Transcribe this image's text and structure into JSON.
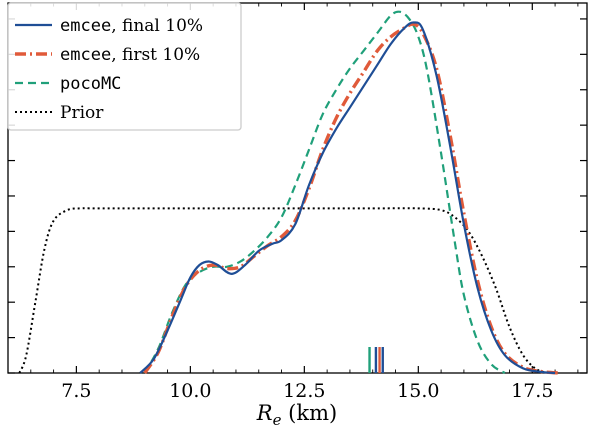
{
  "chart_data": {
    "type": "line",
    "xlabel_symbol": "R",
    "xlabel_subscript": "e",
    "xlabel_unit": " (km)",
    "ylabel": "",
    "xlim": [
      6.0,
      18.7
    ],
    "ylim": [
      0.0,
      1.045
    ],
    "xticks": [
      7.5,
      10.0,
      12.5,
      15.0,
      17.5
    ],
    "xtick_labels": [
      "7.5",
      "10.0",
      "12.5",
      "15.0",
      "17.5"
    ],
    "yticks": [
      0.0,
      0.1,
      0.2,
      0.3,
      0.4,
      0.5,
      0.6,
      0.7,
      0.8,
      0.9,
      1.0
    ],
    "legend_location": "upper-left",
    "series": [
      {
        "id": "final",
        "name_mono": "emcee",
        "name_rest": ", final 10%",
        "color": "#1f4e96",
        "dash": "solid",
        "x": [
          8.9,
          9.2,
          9.5,
          9.8,
          10.0,
          10.2,
          10.4,
          10.6,
          10.9,
          11.2,
          11.5,
          11.8,
          12.0,
          12.3,
          12.6,
          12.9,
          13.2,
          13.5,
          13.8,
          14.1,
          14.4,
          14.7,
          14.9,
          15.1,
          15.4,
          15.7,
          16.0,
          16.3,
          16.6,
          16.9,
          17.3,
          17.7,
          18.0
        ],
        "y": [
          0.0,
          0.04,
          0.12,
          0.21,
          0.27,
          0.305,
          0.315,
          0.305,
          0.28,
          0.305,
          0.345,
          0.365,
          0.375,
          0.42,
          0.53,
          0.62,
          0.69,
          0.75,
          0.81,
          0.87,
          0.93,
          0.975,
          0.99,
          0.97,
          0.84,
          0.64,
          0.42,
          0.24,
          0.12,
          0.05,
          0.013,
          0.003,
          0.0
        ]
      },
      {
        "id": "first",
        "name_mono": "emcee",
        "name_rest": ", first 10%",
        "color": "#e05a3a",
        "dash": "dashdot",
        "x": [
          9.0,
          9.3,
          9.6,
          9.9,
          10.2,
          10.5,
          10.8,
          11.1,
          11.4,
          11.7,
          12.0,
          12.3,
          12.6,
          12.9,
          13.2,
          13.5,
          13.8,
          14.1,
          14.4,
          14.7,
          14.9,
          15.1,
          15.4,
          15.7,
          16.0,
          16.3,
          16.6,
          16.9,
          17.3,
          17.7,
          18.1
        ],
        "y": [
          0.0,
          0.06,
          0.16,
          0.245,
          0.29,
          0.305,
          0.295,
          0.3,
          0.33,
          0.36,
          0.385,
          0.43,
          0.52,
          0.63,
          0.72,
          0.79,
          0.85,
          0.91,
          0.95,
          0.975,
          0.985,
          0.96,
          0.86,
          0.67,
          0.45,
          0.26,
          0.13,
          0.055,
          0.016,
          0.004,
          0.0
        ]
      },
      {
        "id": "poco",
        "name_mono": "pocoMC",
        "name_rest": "",
        "color": "#20a07a",
        "dash": "dashed",
        "x": [
          9.0,
          9.3,
          9.6,
          9.9,
          10.2,
          10.5,
          10.8,
          11.1,
          11.4,
          11.7,
          12.0,
          12.3,
          12.6,
          12.9,
          13.2,
          13.5,
          13.8,
          14.1,
          14.4,
          14.6,
          14.8,
          15.0,
          15.2,
          15.5,
          15.8,
          16.0,
          16.3,
          16.6,
          16.9
        ],
        "y": [
          0.0,
          0.07,
          0.17,
          0.25,
          0.285,
          0.3,
          0.3,
          0.315,
          0.345,
          0.385,
          0.44,
          0.53,
          0.63,
          0.73,
          0.8,
          0.86,
          0.91,
          0.96,
          1.01,
          1.02,
          1.0,
          0.95,
          0.85,
          0.62,
          0.37,
          0.22,
          0.09,
          0.025,
          0.0
        ]
      },
      {
        "id": "prior",
        "name_mono": "",
        "name_rest": "Prior",
        "color": "#000000",
        "dash": "dotted",
        "x": [
          6.25,
          6.4,
          6.6,
          6.8,
          7.0,
          7.3,
          7.6,
          8.0,
          10.0,
          12.0,
          14.0,
          15.0,
          15.5,
          15.8,
          16.1,
          16.4,
          16.7,
          17.0,
          17.3,
          17.6,
          17.9
        ],
        "y": [
          0.0,
          0.05,
          0.2,
          0.35,
          0.43,
          0.46,
          0.465,
          0.465,
          0.465,
          0.465,
          0.465,
          0.465,
          0.46,
          0.44,
          0.4,
          0.33,
          0.24,
          0.13,
          0.05,
          0.01,
          0.0
        ]
      }
    ],
    "markers": [
      {
        "x": 13.93,
        "color": "#20a07a"
      },
      {
        "x": 14.07,
        "color": "#1f4e96"
      },
      {
        "x": 14.15,
        "color": "#e05a3a"
      },
      {
        "x": 14.22,
        "color": "#1f4e96"
      }
    ]
  }
}
